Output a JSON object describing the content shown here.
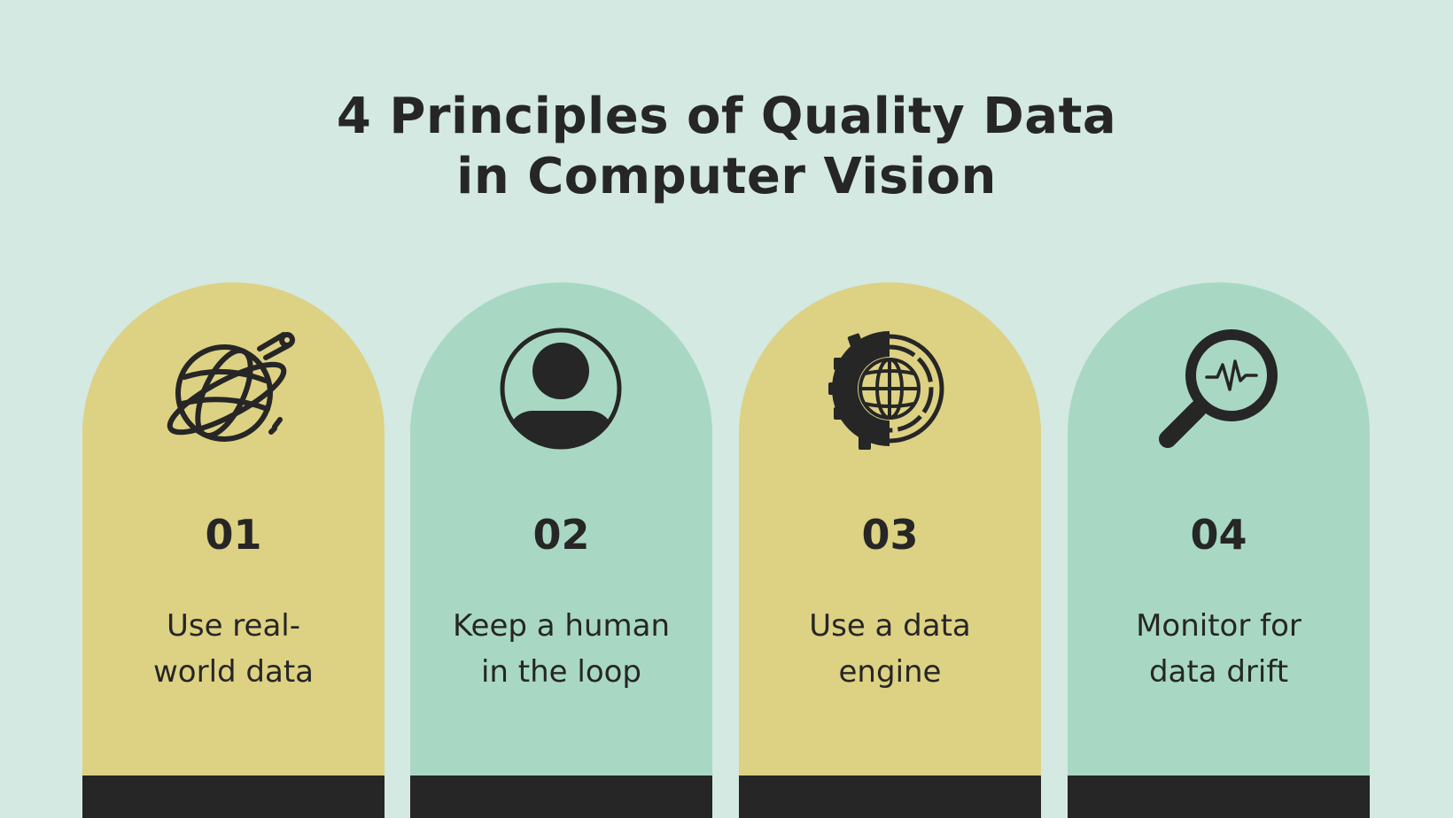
{
  "title": {
    "line1": "4 Principles of Quality Data",
    "line2": "in Computer Vision"
  },
  "colors": {
    "background": "#d3e9e1",
    "yellow": "#ddd183",
    "green": "#a8d8c3",
    "dark": "#262626"
  },
  "cards": [
    {
      "number": "01",
      "line1": "Use real-",
      "line2": "world data",
      "icon": "globe-orbit-icon",
      "color": "yellow"
    },
    {
      "number": "02",
      "line1": "Keep a human",
      "line2": "in the loop",
      "icon": "user-avatar-icon",
      "color": "green"
    },
    {
      "number": "03",
      "line1": "Use a data",
      "line2": "engine",
      "icon": "gear-globe-icon",
      "color": "yellow"
    },
    {
      "number": "04",
      "line1": "Monitor for",
      "line2": "data drift",
      "icon": "magnifier-pulse-icon",
      "color": "green"
    }
  ]
}
